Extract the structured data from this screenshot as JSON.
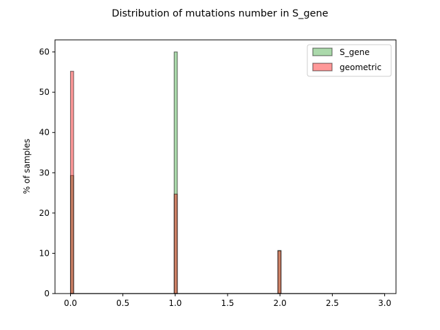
{
  "chart_data": {
    "type": "bar",
    "title": "Distribution of mutations number in S_gene",
    "xlabel": "",
    "ylabel": "% of samples",
    "xlim": [
      -0.148,
      3.108
    ],
    "ylim": [
      0,
      63
    ],
    "xticks": [
      "0.0",
      "0.5",
      "1.0",
      "1.5",
      "2.0",
      "2.5",
      "3.0"
    ],
    "yticks": [
      "0",
      "10",
      "20",
      "30",
      "40",
      "50",
      "60"
    ],
    "bin_width": 0.03,
    "bin_range": [
      0,
      2.97
    ],
    "legend_position": "top-right",
    "grid": false,
    "series": [
      {
        "name": "S_gene",
        "color": "#2ca02c",
        "bins": [
          {
            "x": 0,
            "value": 29.3
          },
          {
            "x": 0.99,
            "value": 60.0
          },
          {
            "x": 1.98,
            "value": 10.7
          }
        ]
      },
      {
        "name": "geometric",
        "color": "#ff0000",
        "bins": [
          {
            "x": 0,
            "value": 55.2
          },
          {
            "x": 0.99,
            "value": 24.7
          },
          {
            "x": 1.98,
            "value": 10.6
          }
        ]
      }
    ]
  }
}
